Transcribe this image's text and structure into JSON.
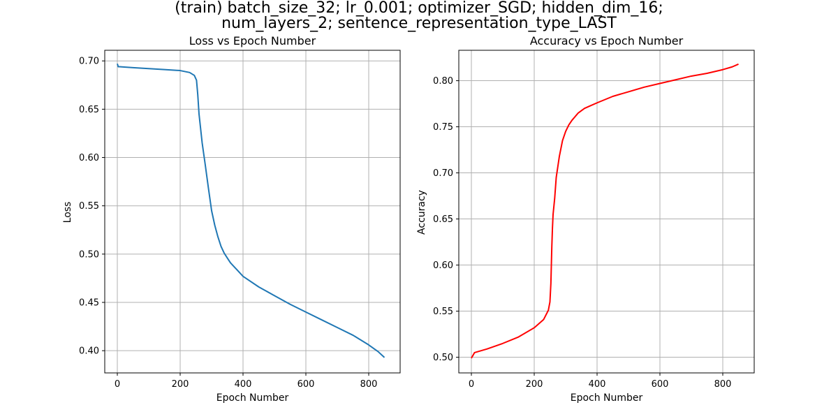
{
  "figure": {
    "title_line1": "(train) batch_size_32; lr_0.001; optimizer_SGD; hidden_dim_16;",
    "title_line2": "num_layers_2; sentence_representation_type_LAST"
  },
  "chart_data": [
    {
      "type": "line",
      "title": "Loss vs Epoch Number",
      "xlabel": "Epoch Number",
      "ylabel": "Loss",
      "xlim": [
        -40,
        900
      ],
      "ylim": [
        0.377,
        0.711
      ],
      "xticks": [
        0,
        200,
        400,
        600,
        800
      ],
      "yticks": [
        0.4,
        0.45,
        0.5,
        0.55,
        0.6,
        0.65,
        0.7
      ],
      "ytick_labels": [
        "0.40",
        "0.45",
        "0.50",
        "0.55",
        "0.60",
        "0.65",
        "0.70"
      ],
      "grid": true,
      "series": [
        {
          "color": "#1f77b4",
          "x": [
            0,
            3,
            6,
            50,
            100,
            150,
            200,
            230,
            245,
            252,
            256,
            260,
            265,
            270,
            280,
            290,
            300,
            310,
            320,
            330,
            340,
            350,
            360,
            380,
            400,
            450,
            500,
            550,
            600,
            650,
            700,
            750,
            800,
            830,
            850
          ],
          "y": [
            0.697,
            0.694,
            0.694,
            0.693,
            0.692,
            0.691,
            0.69,
            0.688,
            0.685,
            0.68,
            0.665,
            0.645,
            0.63,
            0.615,
            0.592,
            0.568,
            0.545,
            0.53,
            0.518,
            0.508,
            0.501,
            0.496,
            0.491,
            0.484,
            0.477,
            0.466,
            0.457,
            0.448,
            0.44,
            0.432,
            0.424,
            0.416,
            0.406,
            0.399,
            0.393
          ]
        }
      ]
    },
    {
      "type": "line",
      "title": "Accuracy vs Epoch Number",
      "xlabel": "Epoch Number",
      "ylabel": "Accuracy",
      "xlim": [
        -40,
        900
      ],
      "ylim": [
        0.483,
        0.833
      ],
      "xticks": [
        0,
        200,
        400,
        600,
        800
      ],
      "yticks": [
        0.5,
        0.55,
        0.6,
        0.65,
        0.7,
        0.75,
        0.8
      ],
      "ytick_labels": [
        "0.50",
        "0.55",
        "0.60",
        "0.65",
        "0.70",
        "0.75",
        "0.80"
      ],
      "grid": true,
      "series": [
        {
          "color": "#ff0000",
          "x": [
            0,
            10,
            50,
            100,
            150,
            200,
            230,
            245,
            250,
            253,
            256,
            258,
            260,
            265,
            270,
            280,
            290,
            300,
            310,
            320,
            340,
            360,
            380,
            400,
            450,
            500,
            550,
            600,
            650,
            700,
            750,
            800,
            830,
            850
          ],
          "y": [
            0.499,
            0.505,
            0.509,
            0.515,
            0.522,
            0.532,
            0.541,
            0.551,
            0.56,
            0.58,
            0.62,
            0.64,
            0.655,
            0.672,
            0.695,
            0.718,
            0.735,
            0.745,
            0.752,
            0.757,
            0.765,
            0.77,
            0.773,
            0.776,
            0.783,
            0.788,
            0.793,
            0.797,
            0.801,
            0.805,
            0.808,
            0.812,
            0.815,
            0.818
          ]
        }
      ]
    }
  ]
}
